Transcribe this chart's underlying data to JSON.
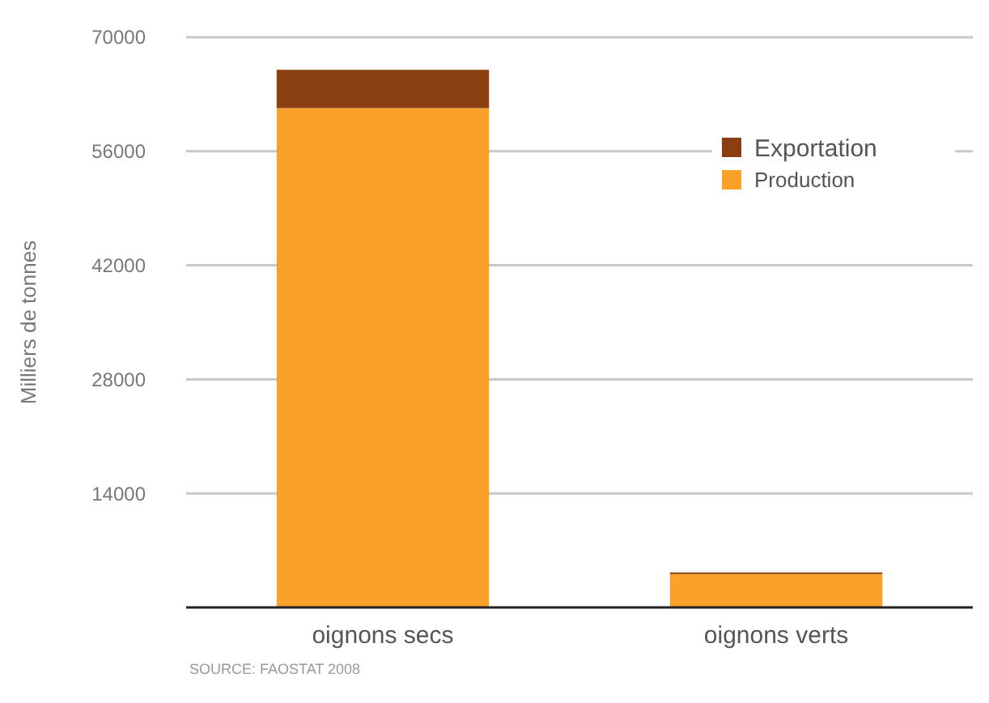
{
  "chart_data": {
    "type": "bar",
    "stacked": true,
    "ylabel": "Milliers de tonnes",
    "categories": [
      "oignons secs",
      "oignons verts"
    ],
    "series": [
      {
        "name": "Production",
        "color": "#f9a12b",
        "values": [
          61300,
          4100
        ]
      },
      {
        "name": "Exportation",
        "color": "#8a3f12",
        "values": [
          4700,
          200
        ]
      }
    ],
    "ylim": [
      0,
      70000
    ],
    "yticks": [
      14000,
      28000,
      42000,
      56000,
      70000
    ],
    "grid": "y",
    "legend": "top right",
    "annotations": [
      "SOURCE: FAOSTAT 2008"
    ]
  }
}
